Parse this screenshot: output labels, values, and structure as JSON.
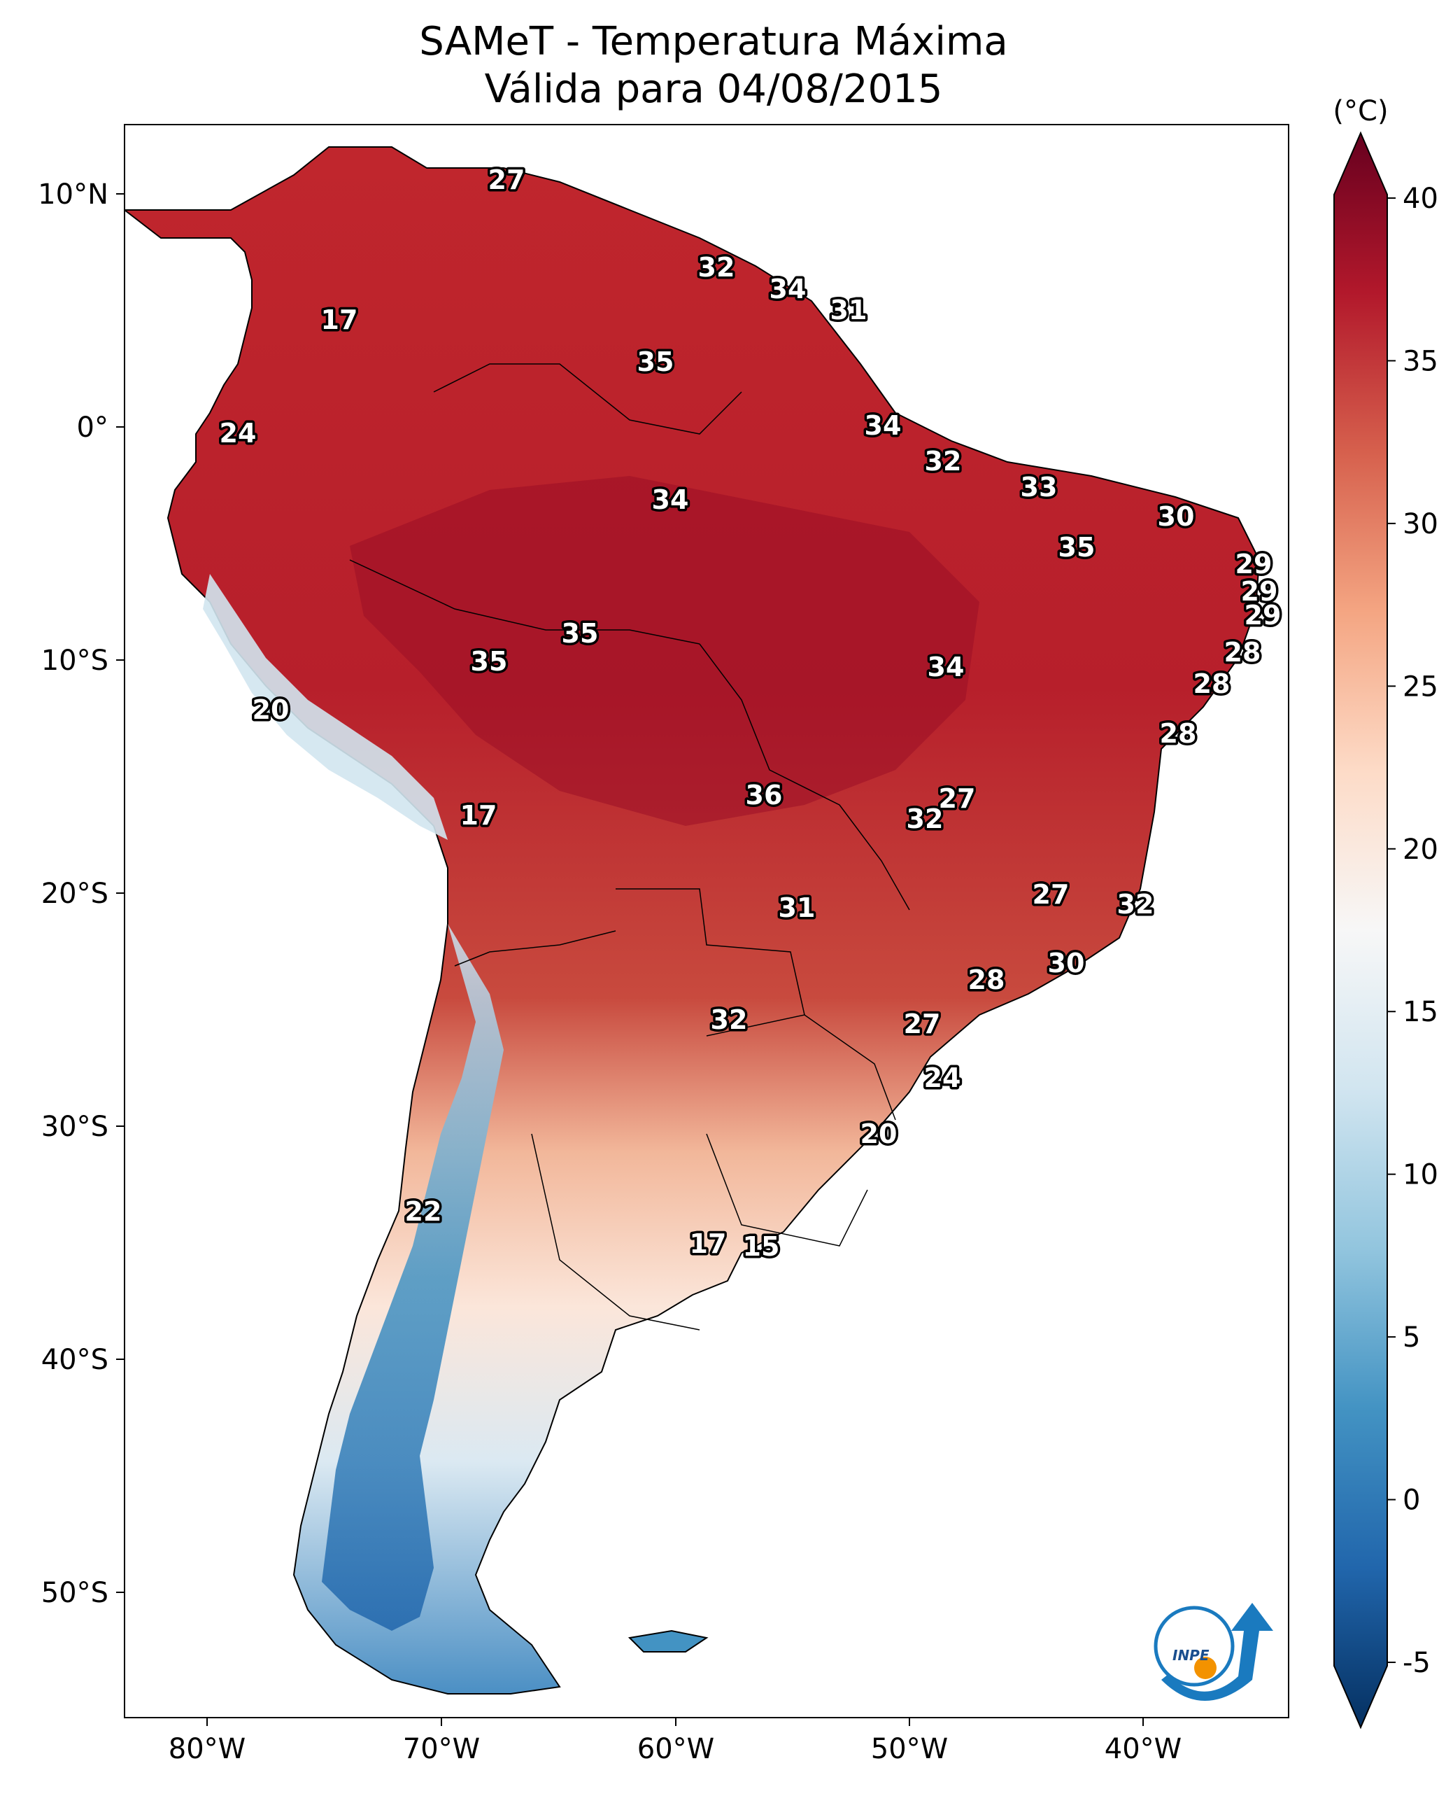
{
  "title_line1": "SAMeT - Temperatura Máxima",
  "title_line2": "Válida para 04/08/2015",
  "colorbar": {
    "unit": "(°C)",
    "ticks": [
      40,
      35,
      30,
      25,
      20,
      15,
      10,
      5,
      0,
      -5
    ],
    "range": [
      -7,
      42
    ],
    "colors": [
      "#053061",
      "#2166ac",
      "#4393c3",
      "#92c5de",
      "#d1e5f0",
      "#f7f7f7",
      "#fddbc7",
      "#f4a582",
      "#d6604d",
      "#b2182b",
      "#67001f"
    ]
  },
  "axes": {
    "lon_ticks": [
      "80°W",
      "70°W",
      "60°W",
      "50°W",
      "40°W"
    ],
    "lat_ticks": [
      "10°N",
      "0°",
      "10°S",
      "20°S",
      "30°S",
      "40°S",
      "50°S"
    ]
  },
  "labels": [
    "27",
    "32",
    "34",
    "31",
    "17",
    "35",
    "24",
    "34",
    "32",
    "33",
    "34",
    "30",
    "35",
    "29",
    "29",
    "29",
    "35",
    "35",
    "28",
    "34",
    "20",
    "28",
    "28",
    "17",
    "36",
    "27",
    "32",
    "27",
    "31",
    "32",
    "30",
    "28",
    "32",
    "27",
    "24",
    "20",
    "22",
    "17",
    "15"
  ],
  "logo": {
    "text": "INPE",
    "colors": {
      "blue": "#1a7abf",
      "orange": "#f39200"
    }
  }
}
